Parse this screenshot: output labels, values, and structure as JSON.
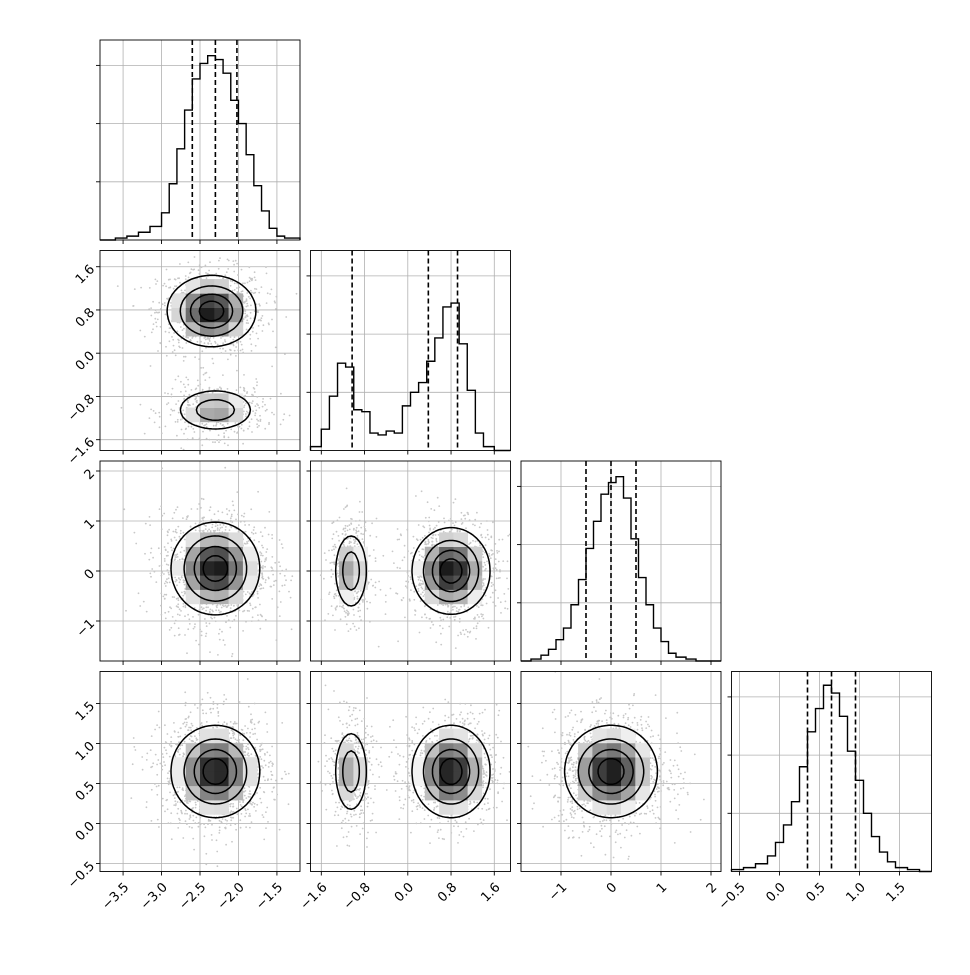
{
  "chart_data": {
    "type": "corner",
    "parameters": [
      {
        "index": 0,
        "range": [
          -3.8,
          -1.2
        ],
        "ticks": [
          -3.5,
          -3.0,
          -2.5,
          -2.0,
          -1.5
        ],
        "tick_labels": [
          "−3.5",
          "−3.0",
          "−2.5",
          "−2.0",
          "−1.5"
        ],
        "quantiles": [
          -2.6,
          -2.3,
          -2.02
        ],
        "histogram": {
          "bin_edges": [
            -3.8,
            -3.6,
            -3.45,
            -3.3,
            -3.15,
            -3.0,
            -2.9,
            -2.8,
            -2.7,
            -2.6,
            -2.5,
            -2.4,
            -2.3,
            -2.2,
            -2.1,
            -2.0,
            -1.9,
            -1.8,
            -1.7,
            -1.6,
            -1.5,
            -1.4,
            -1.2
          ],
          "counts": [
            0,
            0.01,
            0.02,
            0.04,
            0.07,
            0.14,
            0.29,
            0.47,
            0.67,
            0.83,
            0.91,
            0.95,
            0.93,
            0.86,
            0.72,
            0.6,
            0.44,
            0.28,
            0.15,
            0.06,
            0.02,
            0.01
          ]
        }
      },
      {
        "index": 1,
        "range": [
          -1.8,
          1.9
        ],
        "ticks": [
          -1.6,
          -0.8,
          0.0,
          0.8,
          1.6
        ],
        "tick_labels": [
          "−1.6",
          "−0.8",
          "0.0",
          "0.8",
          "1.6"
        ],
        "quantiles": [
          -1.03,
          0.38,
          0.92
        ],
        "histogram": {
          "bin_edges": [
            -1.8,
            -1.6,
            -1.45,
            -1.3,
            -1.15,
            -1.0,
            -0.85,
            -0.7,
            -0.55,
            -0.4,
            -0.25,
            -0.1,
            0.05,
            0.2,
            0.35,
            0.5,
            0.65,
            0.8,
            0.95,
            1.1,
            1.25,
            1.4,
            1.6,
            1.9
          ],
          "counts": [
            0.02,
            0.11,
            0.28,
            0.45,
            0.43,
            0.21,
            0.2,
            0.09,
            0.08,
            0.1,
            0.09,
            0.23,
            0.3,
            0.35,
            0.46,
            0.58,
            0.74,
            0.76,
            0.55,
            0.31,
            0.09,
            0.02,
            0
          ]
        }
      },
      {
        "index": 2,
        "range": [
          -1.8,
          2.2
        ],
        "ticks": [
          -1,
          0,
          1,
          2
        ],
        "tick_labels": [
          "−1",
          "0",
          "1",
          "2"
        ],
        "quantiles": [
          -0.5,
          0.0,
          0.5
        ],
        "histogram": {
          "bin_edges": [
            -1.8,
            -1.6,
            -1.4,
            -1.25,
            -1.1,
            -0.95,
            -0.8,
            -0.65,
            -0.5,
            -0.35,
            -0.2,
            -0.05,
            0.1,
            0.25,
            0.4,
            0.55,
            0.7,
            0.85,
            1.0,
            1.15,
            1.3,
            1.5,
            1.7,
            2.2
          ],
          "counts": [
            0,
            0.01,
            0.03,
            0.06,
            0.11,
            0.17,
            0.29,
            0.42,
            0.58,
            0.72,
            0.86,
            0.92,
            0.95,
            0.84,
            0.63,
            0.43,
            0.29,
            0.17,
            0.1,
            0.04,
            0.02,
            0.01,
            0
          ]
        }
      },
      {
        "index": 3,
        "range": [
          -0.6,
          1.9
        ],
        "ticks": [
          -0.5,
          0.0,
          0.5,
          1.0,
          1.5
        ],
        "tick_labels": [
          "−0.5",
          "0.0",
          "0.5",
          "1.0",
          "1.5"
        ],
        "quantiles": [
          0.35,
          0.65,
          0.95
        ],
        "histogram": {
          "bin_edges": [
            -0.6,
            -0.45,
            -0.3,
            -0.15,
            -0.05,
            0.05,
            0.15,
            0.25,
            0.35,
            0.45,
            0.55,
            0.65,
            0.75,
            0.85,
            0.95,
            1.05,
            1.15,
            1.25,
            1.35,
            1.45,
            1.6,
            1.75,
            1.9
          ],
          "counts": [
            0.01,
            0.02,
            0.04,
            0.08,
            0.15,
            0.24,
            0.36,
            0.54,
            0.72,
            0.84,
            0.96,
            0.92,
            0.8,
            0.62,
            0.47,
            0.3,
            0.18,
            0.1,
            0.05,
            0.02,
            0.01,
            0
          ]
        }
      }
    ],
    "pairs": [
      {
        "x_param": 0,
        "y_param": 1,
        "modes": [
          {
            "center": [
              -2.35,
              0.78
            ],
            "spread": [
              0.28,
              0.32
            ],
            "weight": 1.0
          },
          {
            "center": [
              -2.3,
              -1.05
            ],
            "spread": [
              0.26,
              0.2
            ],
            "weight": 0.55
          }
        ]
      },
      {
        "x_param": 0,
        "y_param": 2,
        "modes": [
          {
            "center": [
              -2.3,
              0.05
            ],
            "spread": [
              0.28,
              0.45
            ],
            "weight": 1.0
          }
        ]
      },
      {
        "x_param": 1,
        "y_param": 2,
        "modes": [
          {
            "center": [
              -1.05,
              0.0
            ],
            "spread": [
              0.16,
              0.4
            ],
            "weight": 0.55
          },
          {
            "center": [
              0.8,
              0.0
            ],
            "spread": [
              0.35,
              0.42
            ],
            "weight": 1.0
          }
        ]
      },
      {
        "x_param": 0,
        "y_param": 3,
        "modes": [
          {
            "center": [
              -2.3,
              0.65
            ],
            "spread": [
              0.28,
              0.28
            ],
            "weight": 1.0
          }
        ]
      },
      {
        "x_param": 1,
        "y_param": 3,
        "modes": [
          {
            "center": [
              -1.05,
              0.65
            ],
            "spread": [
              0.16,
              0.27
            ],
            "weight": 0.55
          },
          {
            "center": [
              0.8,
              0.65
            ],
            "spread": [
              0.35,
              0.28
            ],
            "weight": 1.0
          }
        ]
      },
      {
        "x_param": 2,
        "y_param": 3,
        "modes": [
          {
            "center": [
              0.0,
              0.65
            ],
            "spread": [
              0.45,
              0.28
            ],
            "weight": 1.0
          }
        ]
      }
    ],
    "contour_levels": [
      0.12,
      0.35,
      0.62,
      0.85
    ],
    "grid": true,
    "colors": {
      "line": "#000000",
      "grid": "#b0b0b0",
      "scatter": "#c8c8c8",
      "density_low": "#f2f2f2",
      "density_high": "#111111",
      "background": "#ffffff"
    }
  }
}
